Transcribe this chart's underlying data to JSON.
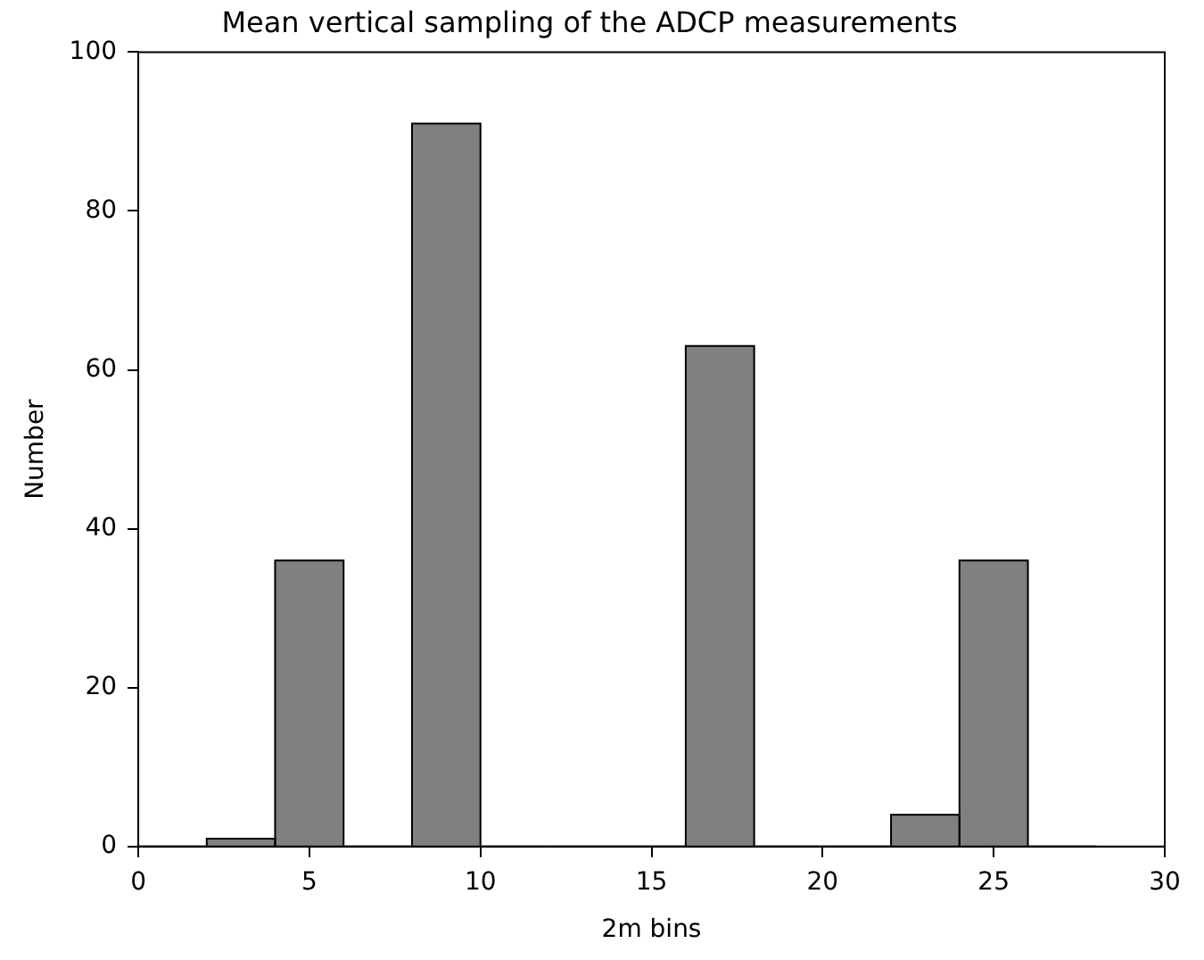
{
  "chart_data": {
    "type": "histogram",
    "title": "Mean vertical sampling of the ADCP measurements",
    "xlabel": "2m bins",
    "ylabel": "Number",
    "bins": [
      0,
      2,
      4,
      6,
      8,
      10,
      12,
      14,
      16,
      18,
      20,
      22,
      24,
      26,
      28
    ],
    "values": [
      0,
      1,
      36,
      0,
      91,
      0,
      0,
      0,
      63,
      0,
      0,
      4,
      36,
      0
    ],
    "color": "#808080",
    "xlim": [
      0,
      30
    ],
    "xticks": [
      0,
      5,
      10,
      15,
      20,
      25,
      30
    ],
    "ylim": [
      0,
      100
    ],
    "yticks": [
      0,
      20,
      40,
      60,
      80,
      100
    ],
    "grid": false,
    "legend": false
  }
}
